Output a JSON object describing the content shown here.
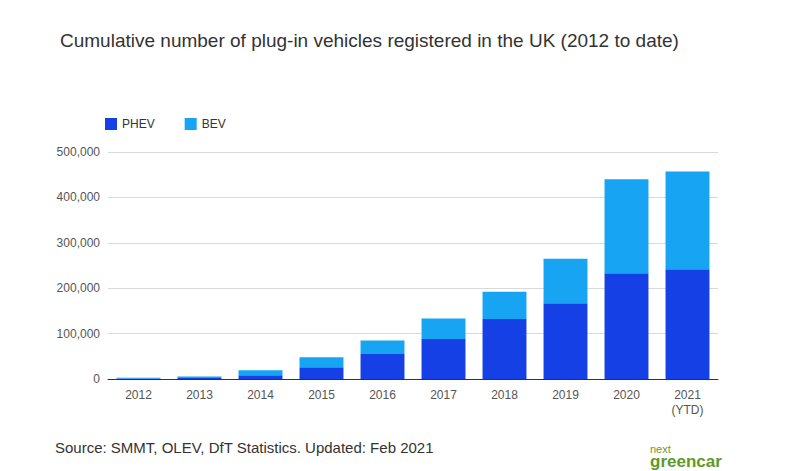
{
  "chart_data": {
    "type": "bar",
    "title": "Cumulative number of plug-in vehicles registered in the UK (2012 to date)",
    "categories": [
      "2012",
      "2013",
      "2014",
      "2015",
      "2016",
      "2017",
      "2018",
      "2019",
      "2020",
      "2021\n(YTD)"
    ],
    "series": [
      {
        "name": "PHEV",
        "color": "#1440e6",
        "values": [
          1000,
          2000,
          8000,
          26000,
          55000,
          88000,
          132000,
          167000,
          233000,
          242000
        ]
      },
      {
        "name": "BEV",
        "color": "#17a4f3",
        "values": [
          1500,
          3500,
          11000,
          22000,
          30000,
          45000,
          60000,
          98000,
          207000,
          215000
        ]
      }
    ],
    "stacked": true,
    "ylim": [
      0,
      500000
    ],
    "yticks": [
      0,
      {
        "value": 100000,
        "label": "100,000"
      },
      {
        "value": 200000,
        "label": "200,000"
      },
      {
        "value": 300000,
        "label": "300,000"
      },
      {
        "value": 400000,
        "label": "400,000"
      },
      {
        "value": 500000,
        "label": "500,000"
      }
    ],
    "grid": true,
    "legend": "top-left",
    "source": "Source: SMMT, OLEV, DfT Statistics. Updated: Feb 2021",
    "logo_text": [
      "next",
      "greencar"
    ]
  }
}
